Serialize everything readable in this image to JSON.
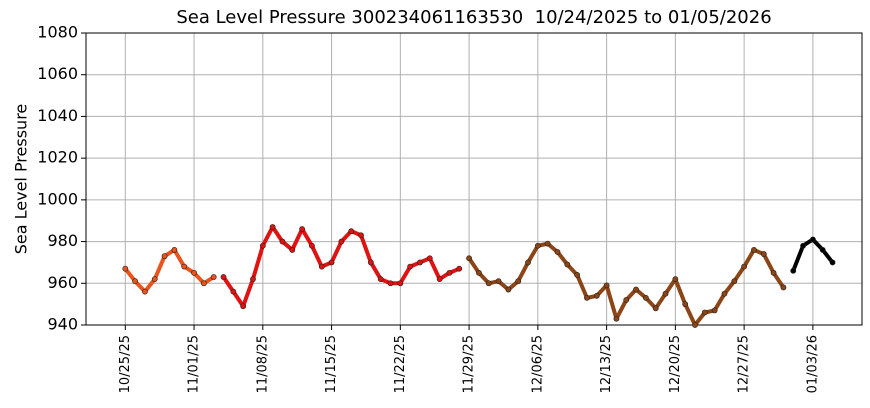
{
  "chart_data": {
    "type": "line",
    "title": "Sea Level Pressure 300234061163530  10/24/2025 to 01/05/2026",
    "y_label": "Sea Level Pressure",
    "grid": true,
    "xlim": [
      "2025-10-21",
      "2026-01-08"
    ],
    "xticks": [
      {
        "value": "2025-10-25",
        "label": "10/25/25"
      },
      {
        "value": "2025-11-01",
        "label": "11/01/25"
      },
      {
        "value": "2025-11-08",
        "label": "11/08/25"
      },
      {
        "value": "2025-11-15",
        "label": "11/15/25"
      },
      {
        "value": "2025-11-22",
        "label": "11/22/25"
      },
      {
        "value": "2025-11-29",
        "label": "11/29/25"
      },
      {
        "value": "2025-12-06",
        "label": "12/06/25"
      },
      {
        "value": "2025-12-13",
        "label": "12/13/25"
      },
      {
        "value": "2025-12-20",
        "label": "12/20/25"
      },
      {
        "value": "2025-12-27",
        "label": "12/27/25"
      },
      {
        "value": "2026-01-03",
        "label": "01/03/26"
      }
    ],
    "ylim": [
      940,
      1080
    ],
    "yticks": [
      940,
      960,
      980,
      1000,
      1020,
      1040,
      1060,
      1080
    ],
    "series": [
      {
        "color": "#e8541c",
        "x": [
          "2025-10-25",
          "2025-10-26",
          "2025-10-27",
          "2025-10-28",
          "2025-10-29",
          "2025-10-30",
          "2025-10-31",
          "2025-11-01",
          "2025-11-02",
          "2025-11-03"
        ],
        "values": [
          967,
          961,
          956,
          962,
          973,
          976,
          968,
          965,
          960,
          963
        ]
      },
      {
        "color": "#e01212",
        "x": [
          "2025-11-04",
          "2025-11-05",
          "2025-11-06",
          "2025-11-07",
          "2025-11-08",
          "2025-11-09",
          "2025-11-10",
          "2025-11-11",
          "2025-11-12",
          "2025-11-13",
          "2025-11-14",
          "2025-11-15",
          "2025-11-16",
          "2025-11-17",
          "2025-11-18",
          "2025-11-19",
          "2025-11-20",
          "2025-11-21",
          "2025-11-22",
          "2025-11-23",
          "2025-11-24",
          "2025-11-25",
          "2025-11-26",
          "2025-11-27",
          "2025-11-28"
        ],
        "values": [
          963,
          956,
          949,
          962,
          978,
          987,
          980,
          976,
          986,
          978,
          968,
          970,
          980,
          985,
          983,
          970,
          962,
          960,
          960,
          968,
          970,
          972,
          962,
          965,
          967
        ]
      },
      {
        "color": "#8b4516",
        "x": [
          "2025-11-29",
          "2025-11-30",
          "2025-12-01",
          "2025-12-02",
          "2025-12-03",
          "2025-12-04",
          "2025-12-05",
          "2025-12-06",
          "2025-12-07",
          "2025-12-08",
          "2025-12-09",
          "2025-12-10",
          "2025-12-11",
          "2025-12-12",
          "2025-12-13",
          "2025-12-14",
          "2025-12-15",
          "2025-12-16",
          "2025-12-17",
          "2025-12-18",
          "2025-12-19",
          "2025-12-20",
          "2025-12-21",
          "2025-12-22",
          "2025-12-23",
          "2025-12-24",
          "2025-12-25",
          "2025-12-26",
          "2025-12-27",
          "2025-12-28",
          "2025-12-29",
          "2025-12-30",
          "2025-12-31"
        ],
        "values": [
          972,
          965,
          960,
          961,
          957,
          961,
          970,
          978,
          979,
          975,
          969,
          964,
          953,
          954,
          959,
          943,
          952,
          957,
          953,
          948,
          955,
          962,
          950,
          940,
          946,
          947,
          955,
          961,
          968,
          976,
          974,
          965,
          958
        ]
      },
      {
        "color": "#000000",
        "x": [
          "2026-01-01",
          "2026-01-02",
          "2026-01-03",
          "2026-01-04",
          "2026-01-05"
        ],
        "values": [
          966,
          978,
          981,
          976,
          970
        ]
      }
    ]
  }
}
